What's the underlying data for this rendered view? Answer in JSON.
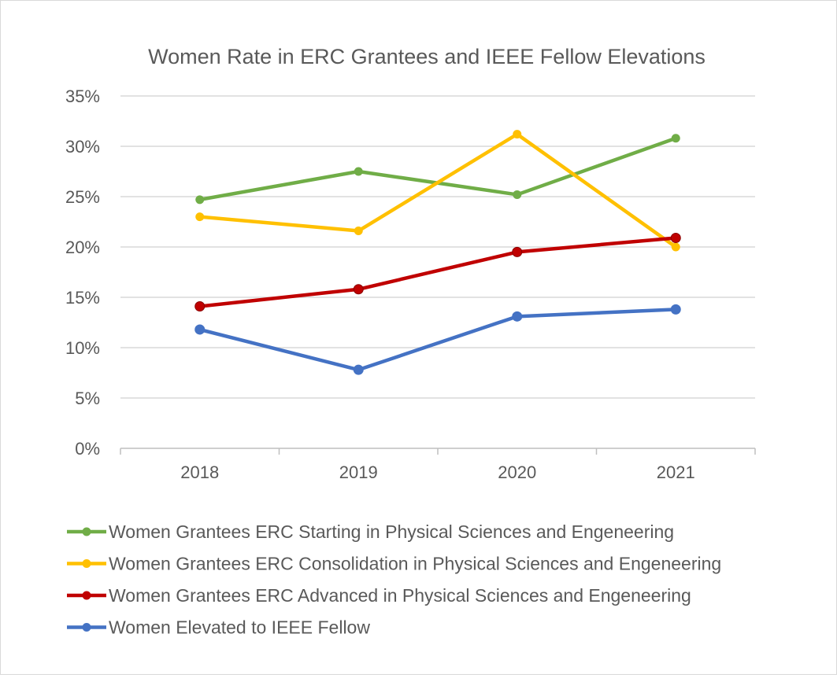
{
  "chart_data": {
    "type": "line",
    "title": "Women Rate in ERC Grantees and IEEE Fellow Elevations",
    "categories": [
      "2018",
      "2019",
      "2020",
      "2021"
    ],
    "ylim": [
      0,
      35
    ],
    "yticks": [
      0,
      5,
      10,
      15,
      20,
      25,
      30,
      35
    ],
    "ytick_labels": [
      "0%",
      "5%",
      "10%",
      "15%",
      "20%",
      "25%",
      "30%",
      "35%"
    ],
    "grid": true,
    "legend_placement": "bottom",
    "series": [
      {
        "name": "Women Grantees ERC Starting in Physical Sciences and Engeneering",
        "color": "#70AD47",
        "values": [
          24.7,
          27.5,
          25.2,
          30.8
        ]
      },
      {
        "name": "Women Grantees ERC Consolidation in Physical Sciences and Engeneering",
        "color": "#FFC000",
        "values": [
          23.0,
          21.6,
          31.2,
          20.0
        ]
      },
      {
        "name": "Women Grantees ERC Advanced in Physical Sciences and Engeneering",
        "color": "#C00000",
        "values": [
          14.1,
          15.8,
          19.5,
          20.9
        ]
      },
      {
        "name": "Women Elevated to IEEE Fellow",
        "color": "#4472C4",
        "values": [
          11.8,
          7.8,
          13.1,
          13.8
        ]
      }
    ]
  }
}
